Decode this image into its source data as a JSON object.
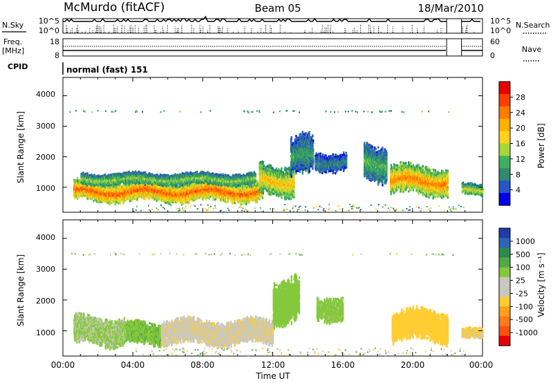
{
  "header": {
    "station": "McMurdo (fitACF)",
    "beam": "Beam 05",
    "date": "18/Mar/2010"
  },
  "top_panels": {
    "nsky_label": "N.Sky",
    "nsky_ticks": [
      "10^5",
      "10^0"
    ],
    "nsearch_label": "N.Search",
    "freq_label": "Freq.",
    "freq_unit": "[MHz]",
    "freq_ticks": [
      "18",
      "8"
    ],
    "nave_label": "Nave",
    "nave_ticks": [
      "60",
      "0"
    ],
    "cpid_label": "CPID",
    "cpid_value": "normal (fast) 151"
  },
  "x_axis": {
    "label": "Time UT",
    "ticks": [
      "00:00",
      "04:00",
      "08:00",
      "12:00",
      "16:00",
      "20:00",
      "00:00"
    ]
  },
  "range_axis": {
    "label": "Slant Range [km]",
    "ticks": [
      "4000",
      "3000",
      "2000",
      "1000"
    ]
  },
  "colorbars": {
    "power": {
      "label": "Power [dB]",
      "ticks": [
        "28",
        "24",
        "20",
        "16",
        "12",
        "8",
        "4"
      ],
      "colors": [
        "#0000e6",
        "#2a55c8",
        "#2f8a6e",
        "#3fb15c",
        "#a6d63a",
        "#ffd21f",
        "#ffb000",
        "#ff7a00",
        "#ff3d00",
        "#e60000"
      ]
    },
    "velocity": {
      "label": "Velocity [m s⁻¹]",
      "ticks": [
        "1000",
        "500",
        "100",
        "25",
        "-25",
        "-100",
        "-500",
        "-1000"
      ],
      "colors": [
        "#1f3ca8",
        "#2e64b8",
        "#2f8a4e",
        "#53a848",
        "#86c83c",
        "#c8c8c0",
        "#c8c8c0",
        "#ffcc33",
        "#ffa020",
        "#ff7a1a",
        "#ff5010",
        "#e60000"
      ]
    }
  },
  "chart_data": [
    {
      "type": "heatmap",
      "title": "Power [dB]",
      "xlabel": "Time UT",
      "ylabel": "Slant Range [km]",
      "xlim": [
        "00:00",
        "24:00"
      ],
      "ylim": [
        180,
        4600
      ],
      "clim": [
        0,
        32
      ],
      "blobs": [
        {
          "t": [
            0.6,
            11.4
          ],
          "r": [
            500,
            1250
          ],
          "v": 26
        },
        {
          "t": [
            1.0,
            11.0
          ],
          "r": [
            1050,
            1500
          ],
          "v": 14
        },
        {
          "t": [
            11.2,
            13.2
          ],
          "r": [
            700,
            1800
          ],
          "v": 20
        },
        {
          "t": [
            13.0,
            14.3
          ],
          "r": [
            1300,
            2700
          ],
          "v": 10
        },
        {
          "t": [
            14.4,
            16.2
          ],
          "r": [
            1500,
            2200
          ],
          "v": 8
        },
        {
          "t": [
            17.2,
            18.5
          ],
          "r": [
            1200,
            2500
          ],
          "v": 12
        },
        {
          "t": [
            18.7,
            22.0
          ],
          "r": [
            700,
            1750
          ],
          "v": 24
        },
        {
          "t": [
            22.8,
            24.0
          ],
          "r": [
            700,
            1150
          ],
          "v": 16
        }
      ]
    },
    {
      "type": "heatmap",
      "title": "Velocity [m s⁻¹]",
      "xlabel": "Time UT",
      "ylabel": "Slant Range [km]",
      "xlim": [
        "00:00",
        "24:00"
      ],
      "ylim": [
        180,
        4600
      ],
      "clim": [
        -1000,
        1000
      ],
      "blobs": [
        {
          "t": [
            0.6,
            3.6
          ],
          "r": [
            500,
            1500
          ],
          "v": 30
        },
        {
          "t": [
            3.6,
            5.6
          ],
          "r": [
            500,
            1300
          ],
          "v": 80
        },
        {
          "t": [
            5.6,
            12.0
          ],
          "r": [
            500,
            1400
          ],
          "v": -80
        },
        {
          "t": [
            12.0,
            13.5
          ],
          "r": [
            1200,
            2800
          ],
          "v": 60
        },
        {
          "t": [
            14.5,
            16.0
          ],
          "r": [
            1300,
            2200
          ],
          "v": 40
        },
        {
          "t": [
            18.8,
            22.0
          ],
          "r": [
            600,
            1700
          ],
          "v": -250
        },
        {
          "t": [
            22.8,
            24.0
          ],
          "r": [
            700,
            1100
          ],
          "v": -120
        }
      ]
    }
  ]
}
